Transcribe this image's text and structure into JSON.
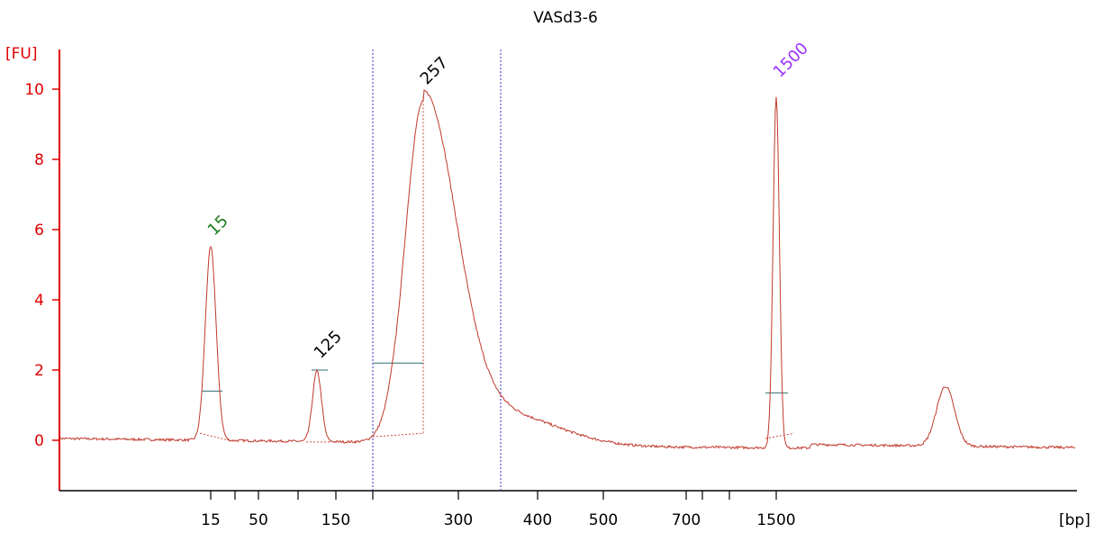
{
  "chart_data": {
    "type": "line",
    "title": "VASd3-6",
    "ylabel": "[FU]",
    "xlabel": "[bp]",
    "ylim": [
      -1.4,
      11.1
    ],
    "y_ticks": [
      "0",
      "2",
      "4",
      "6",
      "8",
      "10"
    ],
    "x_ticks": [
      {
        "label": "15"
      },
      {
        "label": ""
      },
      {
        "label": "50"
      },
      {
        "label": ""
      },
      {
        "label": "150"
      },
      {
        "label": ""
      },
      {
        "label": "300"
      },
      {
        "label": "400"
      },
      {
        "label": "500"
      },
      {
        "label": "700"
      },
      {
        "label": ""
      },
      {
        "label": ""
      },
      {
        "label": "1500"
      }
    ],
    "series": [
      {
        "peaks": [
          {
            "label": "15",
            "x": 15,
            "height": 5.5,
            "width": 6
          },
          {
            "label": "125",
            "x": 125,
            "height": 2.0,
            "width": 5
          },
          {
            "label": "257",
            "x": 257,
            "height": 9.8,
            "width_left": 20,
            "width_right": 36
          },
          {
            "label": "1500",
            "x": 1500,
            "height": 10.0,
            "width": 3.5
          },
          {
            "label": "",
            "x": 2700,
            "height": 1.7,
            "width": 10
          }
        ]
      }
    ],
    "peak_labels": [
      {
        "text": "15",
        "color": "#1a7a1a"
      },
      {
        "text": "125",
        "color": "#000000"
      },
      {
        "text": "257",
        "color": "#000000"
      },
      {
        "text": "1500",
        "color": "#9933ff"
      }
    ],
    "region_markers_bp": [
      200,
      350
    ],
    "grid": false,
    "colors": {
      "trace": "#c0392b",
      "axis": "#e00000",
      "region": "#3333cc",
      "baseline_marker": "#2e6b6b"
    }
  }
}
